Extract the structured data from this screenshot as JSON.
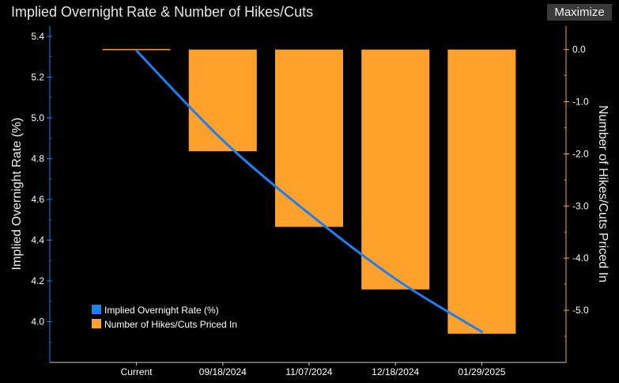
{
  "window": {
    "title": "Implied Overnight Rate & Number of Hikes/Cuts",
    "maximize_label": "Maximize"
  },
  "colors": {
    "background": "#000000",
    "rate_line": "#1e7ff0",
    "bars": "#ffa12b",
    "left_axis": "#1e7ff0",
    "right_axis": "#ffa12b"
  },
  "chart_data": {
    "type": "bar+line",
    "categories": [
      "Current",
      "09/18/2024",
      "11/07/2024",
      "12/18/2024",
      "01/29/2025"
    ],
    "ylabel_left": "Implied Overnight Rate (%)",
    "ylabel_right": "Number of Hikes/Cuts Priced In",
    "ylim_left": [
      3.8,
      5.45
    ],
    "ylim_right": [
      -6.0,
      0.45
    ],
    "yticks_left": [
      "5.4",
      "5.2",
      "5.0",
      "4.8",
      "4.6",
      "4.4",
      "4.2",
      "4.0"
    ],
    "yticks_right": [
      "0.0",
      "-1.0",
      "-2.0",
      "-3.0",
      "-4.0",
      "-5.0"
    ],
    "series": [
      {
        "name": "Implied Overnight Rate (%)",
        "axis": "left",
        "kind": "line",
        "values": [
          5.33,
          4.89,
          4.53,
          4.21,
          3.95
        ]
      },
      {
        "name": "Number of Hikes/Cuts Priced In",
        "axis": "right",
        "kind": "bar",
        "values": [
          0.0,
          -1.95,
          -3.4,
          -4.6,
          -5.45
        ]
      }
    ],
    "legend": {
      "position": "bottom-left",
      "entries": [
        "Implied Overnight Rate (%)",
        "Number of Hikes/Cuts Priced In"
      ]
    }
  }
}
